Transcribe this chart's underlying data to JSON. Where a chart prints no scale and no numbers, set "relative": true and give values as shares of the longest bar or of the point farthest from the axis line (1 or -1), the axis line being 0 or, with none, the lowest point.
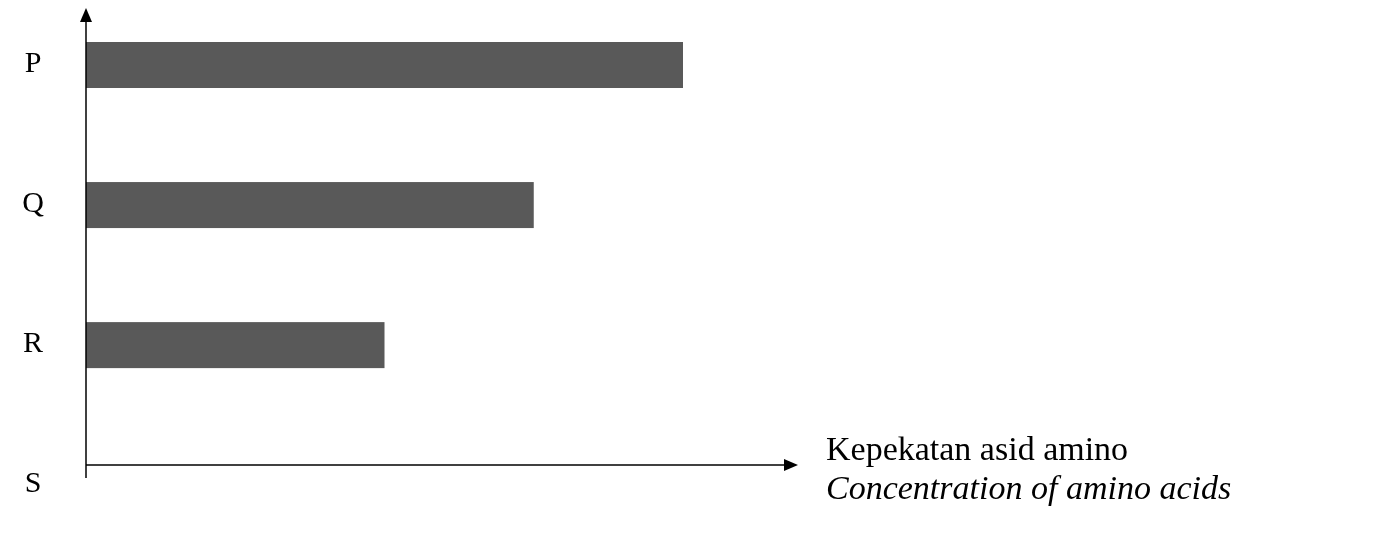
{
  "chart_data": {
    "type": "bar",
    "orientation": "horizontal",
    "relative": true,
    "categories": [
      "P",
      "Q",
      "R",
      "S"
    ],
    "values": [
      1,
      0.75,
      0.5,
      0
    ],
    "color": "#595959",
    "xlabel": "Kepekatan asid amino\nConcentration of amino acids"
  }
}
